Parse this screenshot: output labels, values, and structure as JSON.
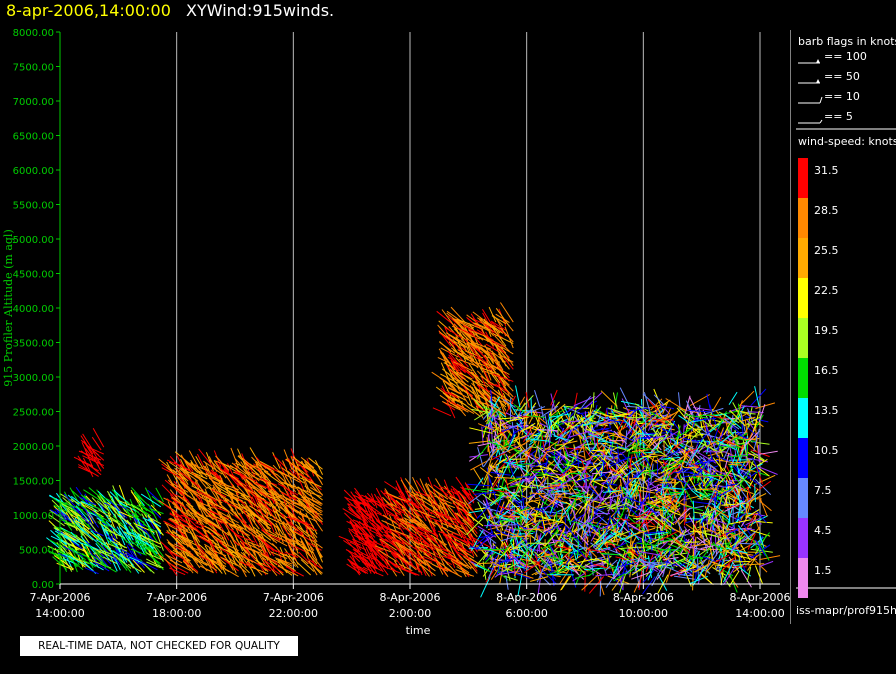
{
  "header": {
    "date_label": "8-apr-2006,14:00:00",
    "plot_name": "XYWind:915winds."
  },
  "legend": {
    "barb_title": "barb flags in knots",
    "barbs": [
      {
        "label": "== 100",
        "value": 100
      },
      {
        "label": "== 50",
        "value": 50
      },
      {
        "label": "== 10",
        "value": 10
      },
      {
        "label": "== 5",
        "value": 5
      }
    ],
    "colorbar_title": "wind-speed: knots",
    "colorbar": [
      {
        "label": "31.5",
        "color": "#ff0000"
      },
      {
        "label": "28.5",
        "color": "#ff8800"
      },
      {
        "label": "25.5",
        "color": "#ffaa00"
      },
      {
        "label": "22.5",
        "color": "#ffff00"
      },
      {
        "label": "19.5",
        "color": "#aaff22"
      },
      {
        "label": "16.5",
        "color": "#00dd00"
      },
      {
        "label": "13.5",
        "color": "#00ffff"
      },
      {
        "label": "10.5",
        "color": "#0000ff"
      },
      {
        "label": "7.5",
        "color": "#6688ff"
      },
      {
        "label": "4.5",
        "color": "#9933ff"
      },
      {
        "label": "1.5",
        "color": "#ee88ee"
      }
    ]
  },
  "footer": {
    "source": "iss-mapr/prof915h",
    "quality_note": "REAL-TIME DATA, NOT CHECKED FOR QUALITY"
  },
  "chart_data": {
    "type": "scatter",
    "title": "8-apr-2006,14:00:00  XYWind:915winds.",
    "xlabel": "time",
    "ylabel": "915 Profiler Altitude (m agl)",
    "xlim": [
      "7-Apr-2006 14:00:00",
      "8-Apr-2006 14:00:00"
    ],
    "ylim": [
      0,
      8000
    ],
    "yticks": [
      0,
      500,
      1000,
      1500,
      2000,
      2500,
      3000,
      3500,
      4000,
      4500,
      5000,
      5500,
      6000,
      6500,
      7000,
      7500,
      8000
    ],
    "ytick_labels": [
      "0.00",
      "500.00",
      "1000.00",
      "1500.00",
      "2000.00",
      "2500.00",
      "3000.00",
      "3500.00",
      "4000.00",
      "4500.00",
      "5000.00",
      "5500.00",
      "6000.00",
      "6500.00",
      "7000.00",
      "7500.00",
      "8000.00"
    ],
    "xticks": [
      {
        "hours": 0,
        "line1": "7-Apr-2006",
        "line2": "14:00:00"
      },
      {
        "hours": 4,
        "line1": "7-Apr-2006",
        "line2": "18:00:00"
      },
      {
        "hours": 8,
        "line1": "7-Apr-2006",
        "line2": "22:00:00"
      },
      {
        "hours": 12,
        "line1": "8-Apr-2006",
        "line2": "2:00:00"
      },
      {
        "hours": 16,
        "line1": "8-Apr-2006",
        "line2": "6:00:00"
      },
      {
        "hours": 20,
        "line1": "8-Apr-2006",
        "line2": "10:00:00"
      },
      {
        "hours": 24,
        "line1": "8-Apr-2006",
        "line2": "14:00:00"
      }
    ],
    "grid": "vertical",
    "series": [
      {
        "time_start_h": 0.1,
        "time_end_h": 3.6,
        "alt_min": 150,
        "alt_max": 1200,
        "speed_knots": [
          10.5,
          22.5
        ]
      },
      {
        "time_start_h": 1.0,
        "time_end_h": 1.6,
        "alt_min": 1500,
        "alt_max": 2000,
        "speed_knots": [
          31.5
        ]
      },
      {
        "time_start_h": 4.0,
        "time_end_h": 9.1,
        "alt_min": 100,
        "alt_max": 1700,
        "speed_knots": [
          25.5,
          31.5
        ]
      },
      {
        "time_start_h": 10.2,
        "time_end_h": 11.3,
        "alt_min": 100,
        "alt_max": 1200,
        "speed_knots": [
          31.5
        ]
      },
      {
        "time_start_h": 11.5,
        "time_end_h": 14.4,
        "alt_min": 100,
        "alt_max": 1300,
        "speed_knots": [
          28.5,
          31.5
        ]
      },
      {
        "time_start_h": 13.4,
        "time_end_h": 15.6,
        "alt_min": 2400,
        "alt_max": 3800,
        "speed_knots": [
          25.5,
          31.5
        ]
      },
      {
        "time_start_h": 14.5,
        "time_end_h": 24.0,
        "alt_min": 100,
        "alt_max": 2600,
        "speed_knots": [
          1.5,
          31.5
        ]
      }
    ]
  }
}
